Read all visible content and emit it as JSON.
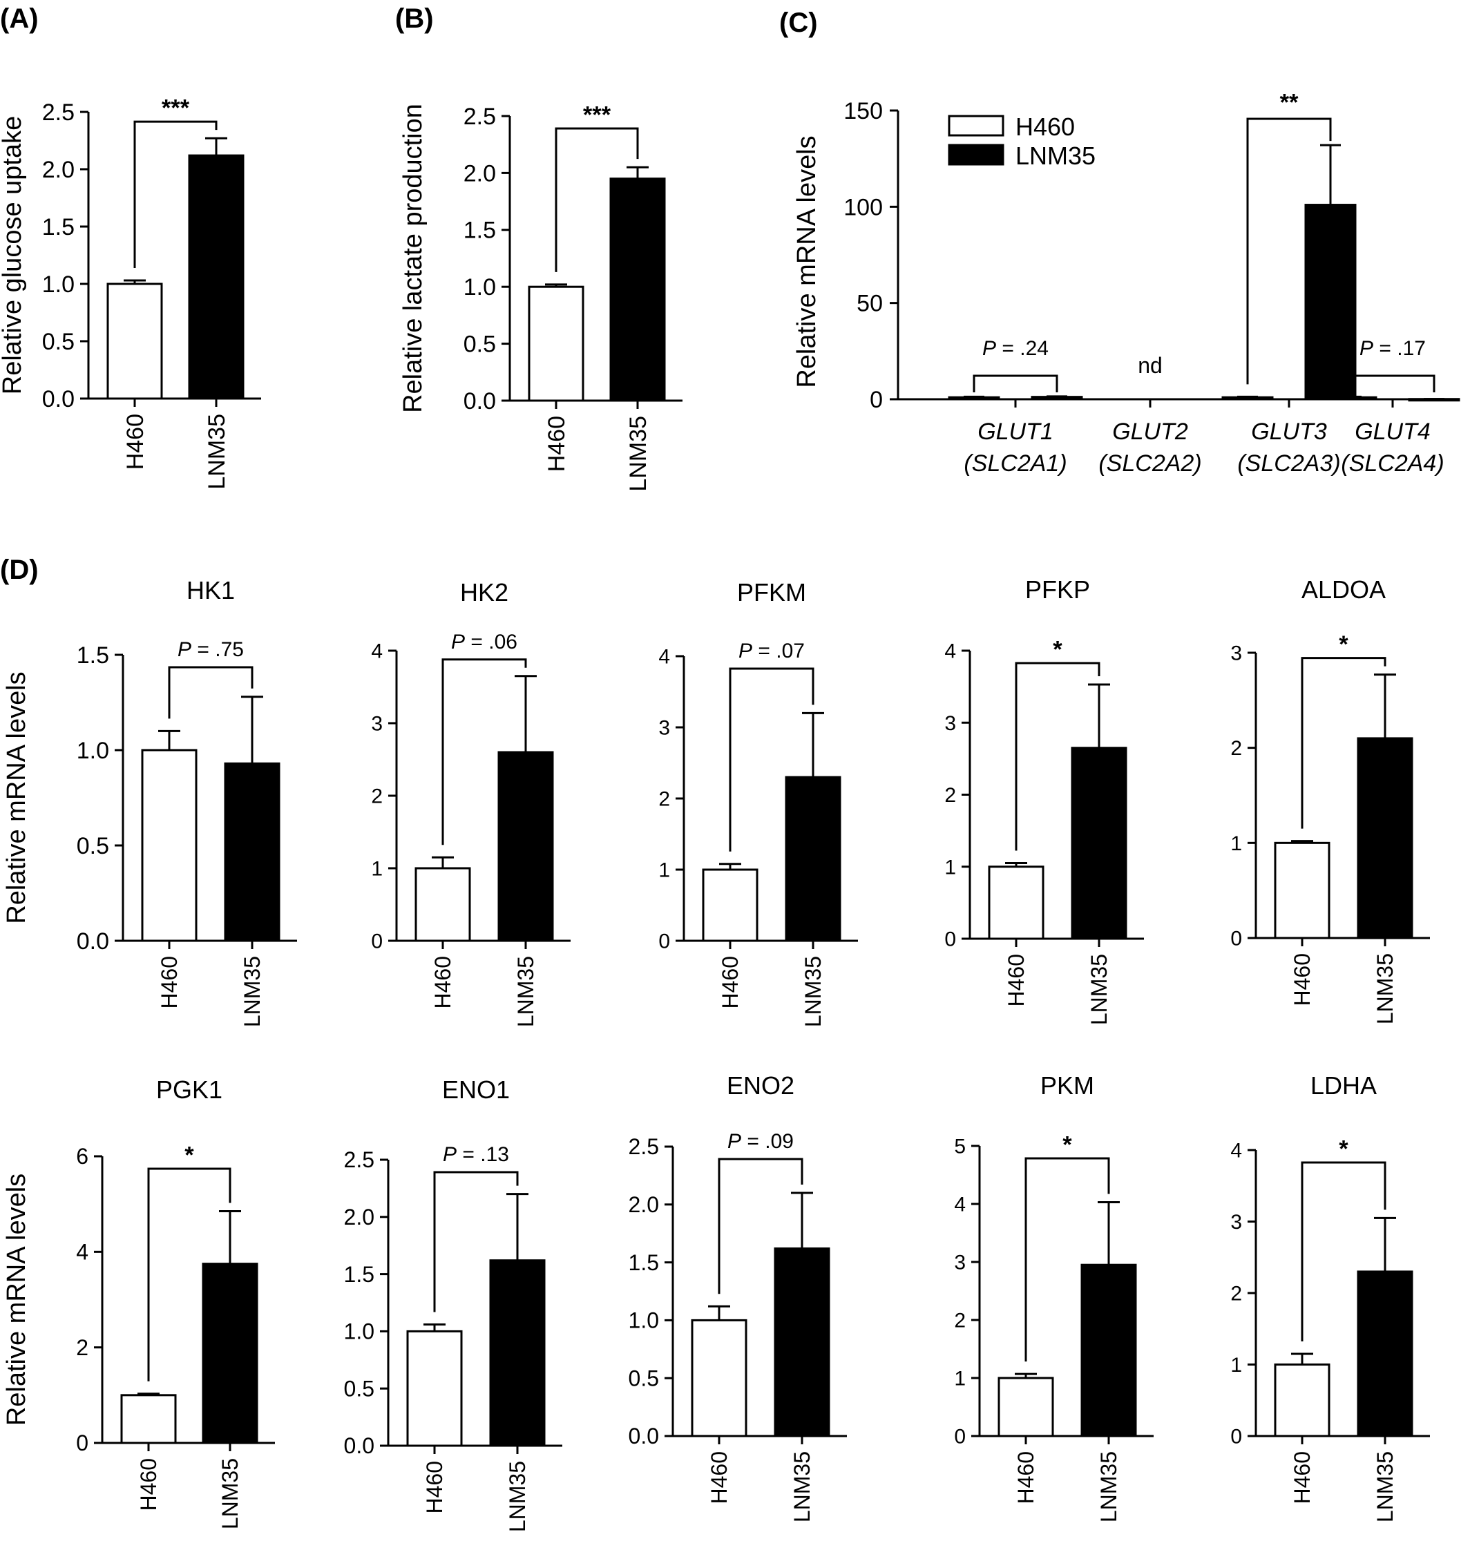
{
  "figure": {
    "legend": {
      "items": [
        {
          "name": "H460",
          "color": "#ffffff"
        },
        {
          "name": "LNM35",
          "color": "#000000"
        }
      ]
    },
    "colors": {
      "H460": "#ffffff",
      "LNM35": "#000000",
      "stroke": "#000000"
    }
  },
  "chart_data": [
    {
      "panel": "(A)",
      "type": "bar",
      "title": "",
      "ylabel": "Relative glucose uptake",
      "categories": [
        "H460",
        "LNM35"
      ],
      "values": [
        1.0,
        2.12
      ],
      "errors": [
        0.03,
        0.15
      ],
      "ylim": [
        0,
        2.5
      ],
      "yticks": [
        "0.0",
        "0.5",
        "1.0",
        "1.5",
        "2.0",
        "2.5"
      ],
      "significance": "***"
    },
    {
      "panel": "(B)",
      "type": "bar",
      "title": "",
      "ylabel": "Relative lactate production",
      "categories": [
        "H460",
        "LNM35"
      ],
      "values": [
        1.0,
        1.95
      ],
      "errors": [
        0.02,
        0.1
      ],
      "ylim": [
        0,
        2.5
      ],
      "yticks": [
        "0.0",
        "0.5",
        "1.0",
        "1.5",
        "2.0",
        "2.5"
      ],
      "significance": "***"
    },
    {
      "panel": "(C)",
      "type": "bar",
      "title": "",
      "ylabel": "Relative mRNA levels",
      "categories": [
        [
          "GLUT1",
          "(SLC2A1)"
        ],
        [
          "GLUT2",
          "(SLC2A2)"
        ],
        [
          "GLUT3",
          "(SLC2A3)"
        ],
        [
          "GLUT4",
          "(SLC2A4)"
        ]
      ],
      "series": [
        {
          "name": "H460",
          "values": [
            1.0,
            null,
            1.0,
            1.0
          ],
          "errors": [
            0.3,
            null,
            0.3,
            0.3
          ]
        },
        {
          "name": "LNM35",
          "values": [
            1.2,
            null,
            101,
            0.1
          ],
          "errors": [
            0.3,
            null,
            31,
            0.05
          ]
        }
      ],
      "ylim": [
        0,
        150
      ],
      "yticks": [
        "0",
        "50",
        "100",
        "150"
      ],
      "annotations": [
        {
          "group": 0,
          "label": "P = .24",
          "bracket": true
        },
        {
          "group": 1,
          "label": "nd",
          "bracket": false
        },
        {
          "group": 2,
          "label": "**",
          "bracket": true
        },
        {
          "group": 3,
          "label": "P = .17",
          "bracket": true
        }
      ],
      "legend": "top-left"
    },
    {
      "panel": "(D)",
      "type": "bar",
      "title": "HK1",
      "ylabel": "Relative mRNA levels",
      "categories": [
        "H460",
        "LNM35"
      ],
      "values": [
        1.0,
        0.93
      ],
      "errors": [
        0.1,
        0.35
      ],
      "ylim": [
        0,
        1.5
      ],
      "yticks": [
        "0.0",
        "0.5",
        "1.0",
        "1.5"
      ],
      "significance": "P = .75"
    },
    {
      "panel": "",
      "type": "bar",
      "title": "HK2",
      "ylabel": "",
      "categories": [
        "H460",
        "LNM35"
      ],
      "values": [
        1.0,
        2.6
      ],
      "errors": [
        0.15,
        1.05
      ],
      "ylim": [
        0,
        4
      ],
      "yticks": [
        "0",
        "1",
        "2",
        "3",
        "4"
      ],
      "significance": "P = .06"
    },
    {
      "panel": "",
      "type": "bar",
      "title": "PFKM",
      "ylabel": "",
      "categories": [
        "H460",
        "LNM35"
      ],
      "values": [
        1.0,
        2.3
      ],
      "errors": [
        0.08,
        0.9
      ],
      "ylim": [
        0,
        4
      ],
      "yticks": [
        "0",
        "1",
        "2",
        "3",
        "4"
      ],
      "significance": "P = .07"
    },
    {
      "panel": "",
      "type": "bar",
      "title": "PFKP",
      "ylabel": "",
      "categories": [
        "H460",
        "LNM35"
      ],
      "values": [
        1.0,
        2.65
      ],
      "errors": [
        0.05,
        0.88
      ],
      "ylim": [
        0,
        4
      ],
      "yticks": [
        "0",
        "1",
        "2",
        "3",
        "4"
      ],
      "significance": "*"
    },
    {
      "panel": "",
      "type": "bar",
      "title": "ALDOA",
      "ylabel": "",
      "categories": [
        "H460",
        "LNM35"
      ],
      "values": [
        1.0,
        2.1
      ],
      "errors": [
        0.02,
        0.67
      ],
      "ylim": [
        0,
        3
      ],
      "yticks": [
        "0",
        "1",
        "2",
        "3"
      ],
      "significance": "*"
    },
    {
      "panel": "",
      "type": "bar",
      "title": "PGK1",
      "ylabel": "Relative mRNA levels",
      "categories": [
        "H460",
        "LNM35"
      ],
      "values": [
        1.0,
        3.75
      ],
      "errors": [
        0.03,
        1.1
      ],
      "ylim": [
        0,
        6
      ],
      "yticks": [
        "0",
        "2",
        "4",
        "6"
      ],
      "significance": "*"
    },
    {
      "panel": "",
      "type": "bar",
      "title": "ENO1",
      "ylabel": "",
      "categories": [
        "H460",
        "LNM35"
      ],
      "values": [
        1.0,
        1.62
      ],
      "errors": [
        0.06,
        0.58
      ],
      "ylim": [
        0,
        2.5
      ],
      "yticks": [
        "0.0",
        "0.5",
        "1.0",
        "1.5",
        "2.0",
        "2.5"
      ],
      "significance": "P = .13"
    },
    {
      "panel": "",
      "type": "bar",
      "title": "ENO2",
      "ylabel": "",
      "categories": [
        "H460",
        "LNM35"
      ],
      "values": [
        1.0,
        1.62
      ],
      "errors": [
        0.12,
        0.48
      ],
      "ylim": [
        0,
        2.5
      ],
      "yticks": [
        "0.0",
        "0.5",
        "1.0",
        "1.5",
        "2.0",
        "2.5"
      ],
      "significance": "P = .09"
    },
    {
      "panel": "",
      "type": "bar",
      "title": "PKM",
      "ylabel": "",
      "categories": [
        "H460",
        "LNM35"
      ],
      "values": [
        1.0,
        2.95
      ],
      "errors": [
        0.07,
        1.08
      ],
      "ylim": [
        0,
        5
      ],
      "yticks": [
        "0",
        "1",
        "2",
        "3",
        "4",
        "5"
      ],
      "significance": "*"
    },
    {
      "panel": "",
      "type": "bar",
      "title": "LDHA",
      "ylabel": "",
      "categories": [
        "H460",
        "LNM35"
      ],
      "values": [
        1.0,
        2.3
      ],
      "errors": [
        0.15,
        0.75
      ],
      "ylim": [
        0,
        4
      ],
      "yticks": [
        "0",
        "1",
        "2",
        "3",
        "4"
      ],
      "significance": "*"
    }
  ]
}
